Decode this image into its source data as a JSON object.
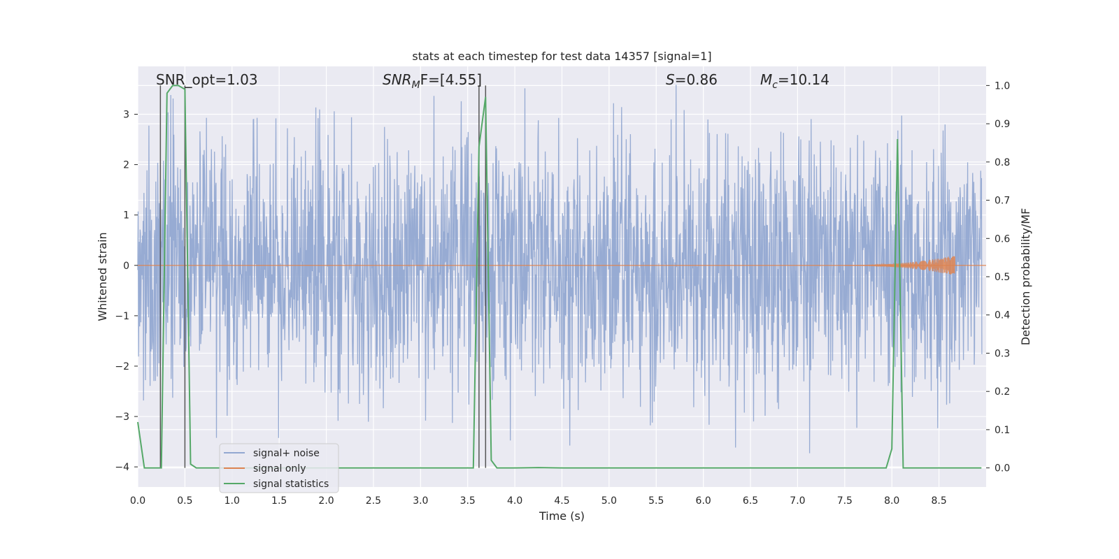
{
  "chart_data": {
    "type": "line",
    "title": "stats at each timestep for test data 14357 [signal=1]",
    "xlabel": "Time (s)",
    "ylabel": "Whitened strain",
    "ylabel_right": "Detection probability/MF",
    "xlim": [
      0.0,
      9.0
    ],
    "ylim": [
      -4.4,
      3.95
    ],
    "ylim_right": [
      -0.05,
      1.05
    ],
    "x_ticks": [
      0.0,
      0.5,
      1.0,
      1.5,
      2.0,
      2.5,
      3.0,
      3.5,
      4.0,
      4.5,
      5.0,
      5.5,
      6.0,
      6.5,
      7.0,
      7.5,
      8.0,
      8.5
    ],
    "x_tick_labels": [
      "0.0",
      "0.5",
      "1.0",
      "1.5",
      "2.0",
      "2.5",
      "3.0",
      "3.5",
      "4.0",
      "4.5",
      "5.0",
      "5.5",
      "6.0",
      "6.5",
      "7.0",
      "7.5",
      "8.0",
      "8.5"
    ],
    "y_ticks": [
      -4,
      -3,
      -2,
      -1,
      0,
      1,
      2,
      3
    ],
    "y_tick_labels": [
      "−4",
      "−3",
      "−2",
      "−1",
      "0",
      "1",
      "2",
      "3"
    ],
    "y_right_ticks": [
      0.0,
      0.1,
      0.2,
      0.3,
      0.4,
      0.5,
      0.6,
      0.7,
      0.8,
      0.9,
      1.0
    ],
    "y_right_tick_labels": [
      "0.0",
      "0.1",
      "0.2",
      "0.3",
      "0.4",
      "0.5",
      "0.6",
      "0.7",
      "0.8",
      "0.9",
      "1.0"
    ],
    "grid": true,
    "legend_position": "lower-left",
    "annotations": {
      "snr_opt": "SNR_opt=1.03",
      "snr_mf_main": "SNR",
      "snr_mf_sub": "M",
      "snr_mf_rest": "F=[4.55]",
      "s_main": "S",
      "s_rest": "=0.86",
      "mc_main": "M",
      "mc_sub": "c",
      "mc_rest": "=10.14"
    },
    "series": [
      {
        "name": "signal+ noise",
        "color": "#92a8d1",
        "description_type": "noise-band",
        "envelope_max": 3.6,
        "envelope_min": -3.85,
        "typical_abs": 1.3
      },
      {
        "name": "signal only",
        "color": "#dd8452",
        "description_type": "chirp",
        "y": 0,
        "chirp_start": 7.5,
        "chirp_end": 8.67,
        "chirp_amp_max": 0.2
      },
      {
        "name": "signal statistics",
        "color": "#55a868",
        "axis": "right",
        "x": [
          0.0,
          0.07,
          0.25,
          0.31,
          0.37,
          0.43,
          0.5,
          0.56,
          0.62,
          0.75,
          1.0,
          1.5,
          2.0,
          2.5,
          3.0,
          3.4,
          3.56,
          3.62,
          3.69,
          3.75,
          3.81,
          4.0,
          4.25,
          4.5,
          5.0,
          5.5,
          6.0,
          6.5,
          7.0,
          7.5,
          7.94,
          8.0,
          8.06,
          8.12,
          8.19,
          8.5,
          8.95
        ],
        "y": [
          0.12,
          0.0,
          0.0,
          0.98,
          1.0,
          1.0,
          0.99,
          0.01,
          0.0,
          0.0,
          0.0,
          0.0,
          0.0,
          0.0,
          0.0,
          0.0,
          0.0,
          0.84,
          0.97,
          0.02,
          0.0,
          0.0,
          0.001,
          0.0,
          0.0,
          0.0,
          0.0,
          0.0,
          0.0,
          0.0,
          0.0,
          0.05,
          0.86,
          0.0,
          0.0,
          0.0,
          0.0
        ]
      }
    ],
    "vertical_lines": [
      0.24,
      0.5,
      3.62,
      3.69
    ],
    "vertical_line_color": "#555555"
  }
}
